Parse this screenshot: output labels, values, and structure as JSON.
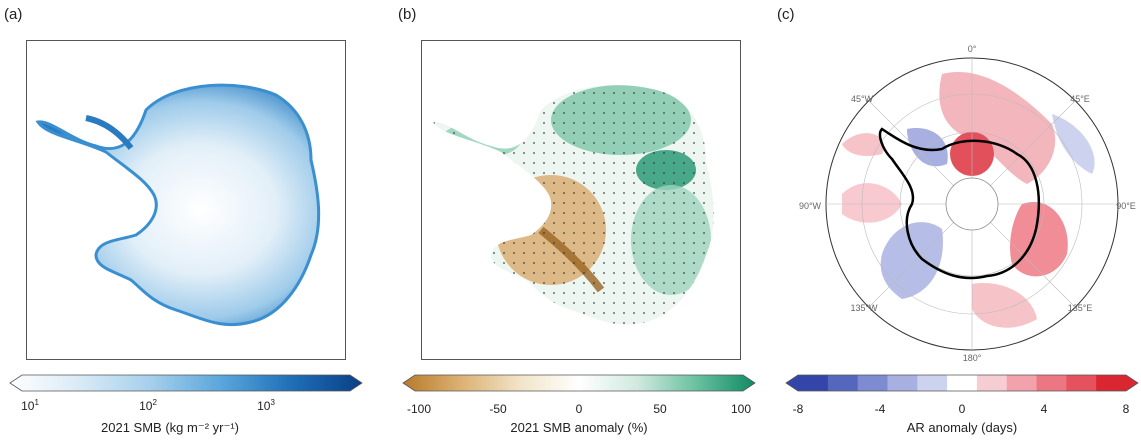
{
  "panels": {
    "a": {
      "label": "(a)",
      "colorbar": {
        "ticks": [
          {
            "base": "10",
            "exp": "1"
          },
          {
            "base": "10",
            "exp": "2"
          },
          {
            "base": "10",
            "exp": "3"
          }
        ],
        "title": "2021 SMB (kg m⁻² yr⁻¹)",
        "colors": [
          "#ffffff",
          "#d8eaf6",
          "#a6cfec",
          "#5aa6dc",
          "#1f6fb8",
          "#0a3f86"
        ]
      }
    },
    "b": {
      "label": "(b)",
      "colorbar": {
        "ticks": [
          "-100",
          "-50",
          "0",
          "50",
          "100"
        ],
        "title": "2021 SMB anomaly (%)",
        "colors": [
          "#b87a2a",
          "#dcb274",
          "#f2e4c8",
          "#ffffff",
          "#cfe9df",
          "#69c1a0",
          "#0f8a64"
        ]
      }
    },
    "c": {
      "label": "(c)",
      "longitude_labels": [
        "0°",
        "45°E",
        "90°E",
        "135°E",
        "180°",
        "135°W",
        "90°W",
        "45°W"
      ],
      "colorbar": {
        "ticks": [
          "-8",
          "-4",
          "0",
          "4",
          "8"
        ],
        "title": "AR anomaly (days)",
        "colors": [
          "#3345a8",
          "#5467bd",
          "#7d8bd0",
          "#a7b0e0",
          "#cdd2ee",
          "#ffffff",
          "#f6cdd2",
          "#f2a2ab",
          "#ec7783",
          "#e5525e",
          "#d92631"
        ]
      }
    }
  }
}
